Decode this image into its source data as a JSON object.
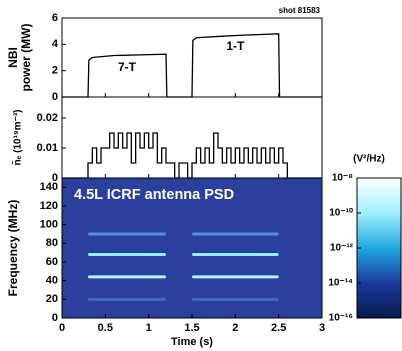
{
  "chart_data": [
    {
      "type": "line",
      "ylabel": [
        "NBI",
        "power (MW)"
      ],
      "annotation": "shot 81583",
      "labels": [
        "7-T",
        "1-T"
      ],
      "xlim": [
        0,
        3
      ],
      "ylim": [
        0,
        6
      ],
      "yticks": [
        0,
        2,
        4,
        6
      ],
      "color": "#000000",
      "x": [
        0,
        0.3,
        0.31,
        0.35,
        0.6,
        0.9,
        1.2,
        1.21,
        1.5,
        1.51,
        1.55,
        1.8,
        2.1,
        2.5,
        2.51,
        3
      ],
      "values": [
        0,
        0,
        2.8,
        3.0,
        3.15,
        3.2,
        3.25,
        0,
        0,
        4.3,
        4.5,
        4.6,
        4.7,
        4.8,
        0,
        0
      ]
    },
    {
      "type": "step",
      "ylabel": "n̄ₑ (10¹⁹m⁻³)",
      "xlim": [
        0,
        3
      ],
      "ylim": [
        0,
        0.027
      ],
      "yticks": [
        0,
        0.01,
        0.02
      ],
      "color": "#000000",
      "x": [
        0,
        0.05,
        0.1,
        0.15,
        0.2,
        0.25,
        0.3,
        0.35,
        0.4,
        0.45,
        0.5,
        0.55,
        0.6,
        0.65,
        0.7,
        0.75,
        0.8,
        0.85,
        0.9,
        0.95,
        1.0,
        1.05,
        1.1,
        1.15,
        1.2,
        1.25,
        1.3,
        1.35,
        1.4,
        1.45,
        1.5,
        1.55,
        1.6,
        1.65,
        1.7,
        1.75,
        1.8,
        1.85,
        1.9,
        1.95,
        2.0,
        2.05,
        2.1,
        2.15,
        2.2,
        2.25,
        2.3,
        2.35,
        2.4,
        2.45,
        2.5,
        2.55,
        2.6,
        2.65,
        2.7,
        2.75,
        2.8,
        2.85,
        2.9,
        2.95,
        3.0
      ],
      "values": [
        0,
        0,
        0,
        0,
        0,
        0,
        0.005,
        0.01,
        0.005,
        0.01,
        0.01,
        0.015,
        0.01,
        0.015,
        0.01,
        0.015,
        0.005,
        0.015,
        0.01,
        0.015,
        0.01,
        0.015,
        0.005,
        0.01,
        0.005,
        0.005,
        0,
        0.005,
        0.005,
        0,
        0.005,
        0.01,
        0.005,
        0.01,
        0.005,
        0.015,
        0.01,
        0.005,
        0.01,
        0.005,
        0.01,
        0.005,
        0.01,
        0.005,
        0.01,
        0.005,
        0.01,
        0.005,
        0.01,
        0.005,
        0.01,
        0.005,
        0,
        0,
        0,
        0,
        0,
        0,
        0,
        0,
        0
      ]
    },
    {
      "type": "spectrogram",
      "title": "4.5L ICRF antenna PSD",
      "xlabel": "Time (s)",
      "ylabel": "Frequency (MHz)",
      "xlim": [
        0,
        3
      ],
      "xticks": [
        0,
        0.5,
        1,
        1.5,
        2,
        2.5,
        3
      ],
      "ylim": [
        0,
        150
      ],
      "yticks": [
        0,
        20,
        40,
        60,
        80,
        100,
        120,
        140
      ],
      "background": "#2b3f9c",
      "segments": [
        [
          0.3,
          1.2
        ],
        [
          1.5,
          2.5
        ]
      ],
      "bands": [
        {
          "freq": 68,
          "color": "#8ff0ff"
        },
        {
          "freq": 44,
          "color": "#b0f6ff"
        },
        {
          "freq": 90,
          "color": "#5a8ad8"
        },
        {
          "freq": 20,
          "color": "#4668c4"
        }
      ],
      "colorbar": {
        "label": "(V²/Hz)",
        "lim": [
          -16,
          -8
        ],
        "ticks": [
          {
            "value": -8,
            "label": "10⁻⁸"
          },
          {
            "value": -10,
            "label": "10⁻¹⁰"
          },
          {
            "value": -12,
            "label": "10⁻¹²"
          },
          {
            "value": -14,
            "label": "10⁻¹⁴"
          },
          {
            "value": -16,
            "label": "10⁻¹⁶"
          }
        ],
        "colors": [
          "#061a4a",
          "#1b3a9e",
          "#1fa8e0",
          "#9ff0ff",
          "#ffffff"
        ]
      }
    }
  ]
}
